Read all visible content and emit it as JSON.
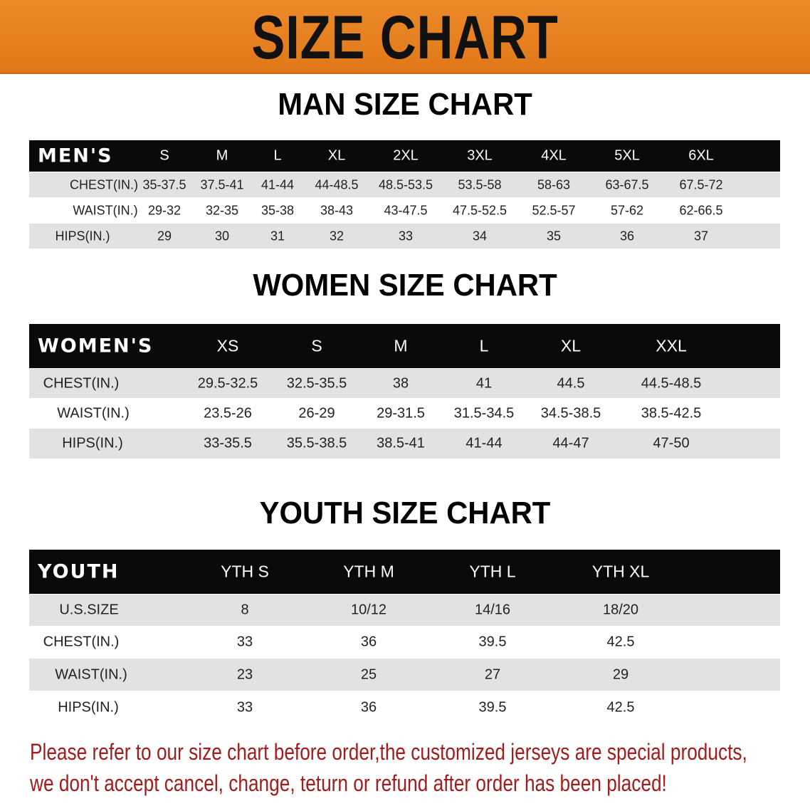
{
  "title": "SIZE CHART",
  "colors": {
    "banner": "#e8801f",
    "header_bg": "#0a0a0a",
    "stripe": "#e2e2e2",
    "note": "#a11d1d"
  },
  "men": {
    "section_title": "MAN SIZE CHART",
    "header": "MEN'S",
    "sizes": [
      "S",
      "M",
      "L",
      "XL",
      "2XL",
      "3XL",
      "4XL",
      "5XL",
      "6XL"
    ],
    "rows": [
      {
        "label": "CHEST(IN.)",
        "values": [
          "35-37.5",
          "37.5-41",
          "41-44",
          "44-48.5",
          "48.5-53.5",
          "53.5-58",
          "58-63",
          "63-67.5",
          "67.5-72"
        ]
      },
      {
        "label": "WAIST(IN.)",
        "values": [
          "29-32",
          "32-35",
          "35-38",
          "38-43",
          "43-47.5",
          "47.5-52.5",
          "52.5-57",
          "57-62",
          "62-66.5"
        ]
      },
      {
        "label": "HIPS(IN.)",
        "values": [
          "29",
          "30",
          "31",
          "32",
          "33",
          "34",
          "35",
          "36",
          "37"
        ]
      }
    ]
  },
  "women": {
    "section_title": "WOMEN SIZE CHART",
    "header": "WOMEN'S",
    "sizes": [
      "XS",
      "S",
      "M",
      "L",
      "XL",
      "XXL"
    ],
    "rows": [
      {
        "label": "CHEST(IN.)",
        "values": [
          "29.5-32.5",
          "32.5-35.5",
          "38",
          "41",
          "44.5",
          "44.5-48.5"
        ]
      },
      {
        "label": "WAIST(IN.)",
        "values": [
          "23.5-26",
          "26-29",
          "29-31.5",
          "31.5-34.5",
          "34.5-38.5",
          "38.5-42.5"
        ]
      },
      {
        "label": "HIPS(IN.)",
        "values": [
          "33-35.5",
          "35.5-38.5",
          "38.5-41",
          "41-44",
          "44-47",
          "47-50"
        ]
      }
    ]
  },
  "youth": {
    "section_title": "YOUTH SIZE CHART",
    "header": "YOUTH",
    "sizes": [
      "YTH S",
      "YTH M",
      "YTH L",
      "YTH XL"
    ],
    "rows": [
      {
        "label": "U.S.SIZE",
        "values": [
          "8",
          "10/12",
          "14/16",
          "18/20"
        ]
      },
      {
        "label": "CHEST(IN.)",
        "values": [
          "33",
          "36",
          "39.5",
          "42.5"
        ]
      },
      {
        "label": "WAIST(IN.)",
        "values": [
          "23",
          "25",
          "27",
          "29"
        ]
      },
      {
        "label": "HIPS(IN.)",
        "values": [
          "33",
          "36",
          "39.5",
          "42.5"
        ]
      }
    ]
  },
  "note": {
    "line1": "Please refer to our size chart before order,the customized jerseys are special products,",
    "line2": "we don't accept cancel, change, teturn or refund after order has been placed!"
  }
}
